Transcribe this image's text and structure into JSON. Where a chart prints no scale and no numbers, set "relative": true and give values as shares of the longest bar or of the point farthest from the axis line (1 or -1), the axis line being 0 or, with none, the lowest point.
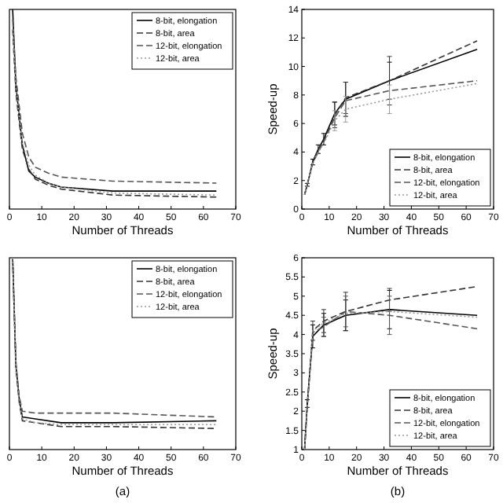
{
  "chart_data": [
    {
      "type": "line",
      "relative": true,
      "x": [
        1,
        2,
        4,
        6,
        8,
        12,
        16,
        32,
        64
      ],
      "xlabel": "Number of Threads",
      "xlim": [
        0,
        70
      ],
      "xticks": [
        0,
        10,
        20,
        30,
        40,
        50,
        60,
        70
      ],
      "legend": "top right",
      "series": [
        {
          "name": "8-bit, elongation",
          "color": "#000000",
          "line_style": "solid",
          "values": [
            1,
            0.62,
            0.32,
            0.19,
            0.16,
            0.13,
            0.11,
            0.09,
            0.09
          ]
        },
        {
          "name": "8-bit, area",
          "color": "#333333",
          "line_style": "dashed",
          "values": [
            0.9,
            0.58,
            0.3,
            0.2,
            0.15,
            0.12,
            0.1,
            0.07,
            0.06
          ]
        },
        {
          "name": "12-bit, elongation",
          "color": "#555555",
          "line_style": "dashed",
          "values": [
            0.95,
            0.66,
            0.38,
            0.26,
            0.21,
            0.18,
            0.16,
            0.14,
            0.13
          ]
        },
        {
          "name": "12-bit, area",
          "color": "#999999",
          "line_style": "dotted",
          "values": [
            0.92,
            0.6,
            0.33,
            0.22,
            0.17,
            0.13,
            0.11,
            0.08,
            0.07
          ]
        }
      ]
    },
    {
      "type": "line",
      "x": [
        1,
        2,
        4,
        6,
        8,
        12,
        16,
        32,
        64
      ],
      "xlabel": "Number of Threads",
      "ylabel": "Speed-up",
      "xlim": [
        0,
        70
      ],
      "xticks": [
        0,
        10,
        20,
        30,
        40,
        50,
        60,
        70
      ],
      "ylim": [
        0,
        14
      ],
      "yticks": [
        0,
        2,
        4,
        6,
        8,
        10,
        12,
        14
      ],
      "legend": "bottom right",
      "series": [
        {
          "name": "8-bit, elongation",
          "color": "#000000",
          "line_style": "solid",
          "values": [
            1,
            1.7,
            3.3,
            4.2,
            4.9,
            6.7,
            7.7,
            9,
            11.2
          ],
          "errors": [
            null,
            0.1,
            0.2,
            0.3,
            0.4,
            0.8,
            1.2,
            1.3,
            null
          ]
        },
        {
          "name": "8-bit, area",
          "color": "#333333",
          "line_style": "dashed",
          "values": [
            1,
            1.7,
            3.3,
            4.2,
            4.8,
            6.6,
            7.8,
            9,
            11.8
          ],
          "errors": [
            null,
            null,
            null,
            null,
            null,
            0.9,
            1.1,
            1.7,
            null
          ]
        },
        {
          "name": "12-bit, elongation",
          "color": "#555555",
          "line_style": "dashed",
          "values": [
            1,
            1.7,
            3.2,
            4,
            4.7,
            6.4,
            7.6,
            8.3,
            9
          ]
        },
        {
          "name": "12-bit, area",
          "color": "#999999",
          "line_style": "dotted",
          "values": [
            1,
            1.7,
            3.2,
            4,
            4.6,
            6.2,
            7,
            7.7,
            8.8
          ],
          "errors": [
            null,
            null,
            null,
            null,
            null,
            0.7,
            0.9,
            1,
            null
          ]
        }
      ]
    },
    {
      "type": "line",
      "relative": true,
      "x": [
        1,
        2,
        3,
        4,
        8,
        16,
        32,
        64
      ],
      "xlabel": "Number of Threads",
      "xlim": [
        0,
        70
      ],
      "xticks": [
        0,
        10,
        20,
        30,
        40,
        50,
        60,
        70
      ],
      "legend": "top right",
      "annotations": [
        "(a)"
      ],
      "series": [
        {
          "name": "8-bit, elongation",
          "color": "#000000",
          "line_style": "solid",
          "values": [
            1,
            0.44,
            0.27,
            0.17,
            0.16,
            0.14,
            0.14,
            0.15
          ]
        },
        {
          "name": "8-bit, area",
          "color": "#333333",
          "line_style": "dashed",
          "values": [
            1,
            0.42,
            0.25,
            0.15,
            0.14,
            0.12,
            0.12,
            0.11
          ]
        },
        {
          "name": "12-bit, elongation",
          "color": "#555555",
          "line_style": "dashed",
          "values": [
            1,
            0.46,
            0.28,
            0.2,
            0.19,
            0.19,
            0.19,
            0.17
          ]
        },
        {
          "name": "12-bit, area",
          "color": "#999999",
          "line_style": "dotted",
          "values": [
            1,
            0.43,
            0.26,
            0.16,
            0.14,
            0.13,
            0.13,
            0.13
          ]
        }
      ]
    },
    {
      "type": "line",
      "x": [
        1,
        2,
        4,
        8,
        16,
        32,
        64
      ],
      "xlabel": "Number of Threads",
      "ylabel": "Speed-up",
      "xlim": [
        0,
        70
      ],
      "xticks": [
        0,
        10,
        20,
        30,
        40,
        50,
        60,
        70
      ],
      "ylim": [
        1,
        6
      ],
      "yticks": [
        1,
        1.5,
        2,
        2.5,
        3,
        3.5,
        4,
        4.5,
        5,
        5.5,
        6
      ],
      "legend": "bottom right",
      "annotations": [
        "(b)"
      ],
      "series": [
        {
          "name": "8-bit, elongation",
          "color": "#000000",
          "line_style": "solid",
          "values": [
            1,
            2.2,
            3.95,
            4.25,
            4.5,
            4.65,
            4.5
          ],
          "errors": [
            null,
            0.1,
            0.3,
            0.3,
            0.4,
            0.5,
            null
          ]
        },
        {
          "name": "8-bit, area",
          "color": "#333333",
          "line_style": "dashed",
          "values": [
            1,
            2.15,
            4.1,
            4.35,
            4.6,
            4.9,
            5.25
          ],
          "errors": [
            null,
            null,
            0.25,
            0.3,
            0.5,
            0.3,
            null
          ]
        },
        {
          "name": "12-bit, elongation",
          "color": "#555555",
          "line_style": "dashed",
          "values": [
            1,
            2.1,
            4.05,
            4.2,
            4.6,
            4.5,
            4.15
          ],
          "errors": [
            null,
            null,
            null,
            0.25,
            0.4,
            0.5,
            null
          ]
        },
        {
          "name": "12-bit, area",
          "color": "#999999",
          "line_style": "dotted",
          "values": [
            1,
            2.1,
            4.1,
            4.3,
            4.55,
            4.6,
            4.45
          ]
        }
      ]
    }
  ]
}
